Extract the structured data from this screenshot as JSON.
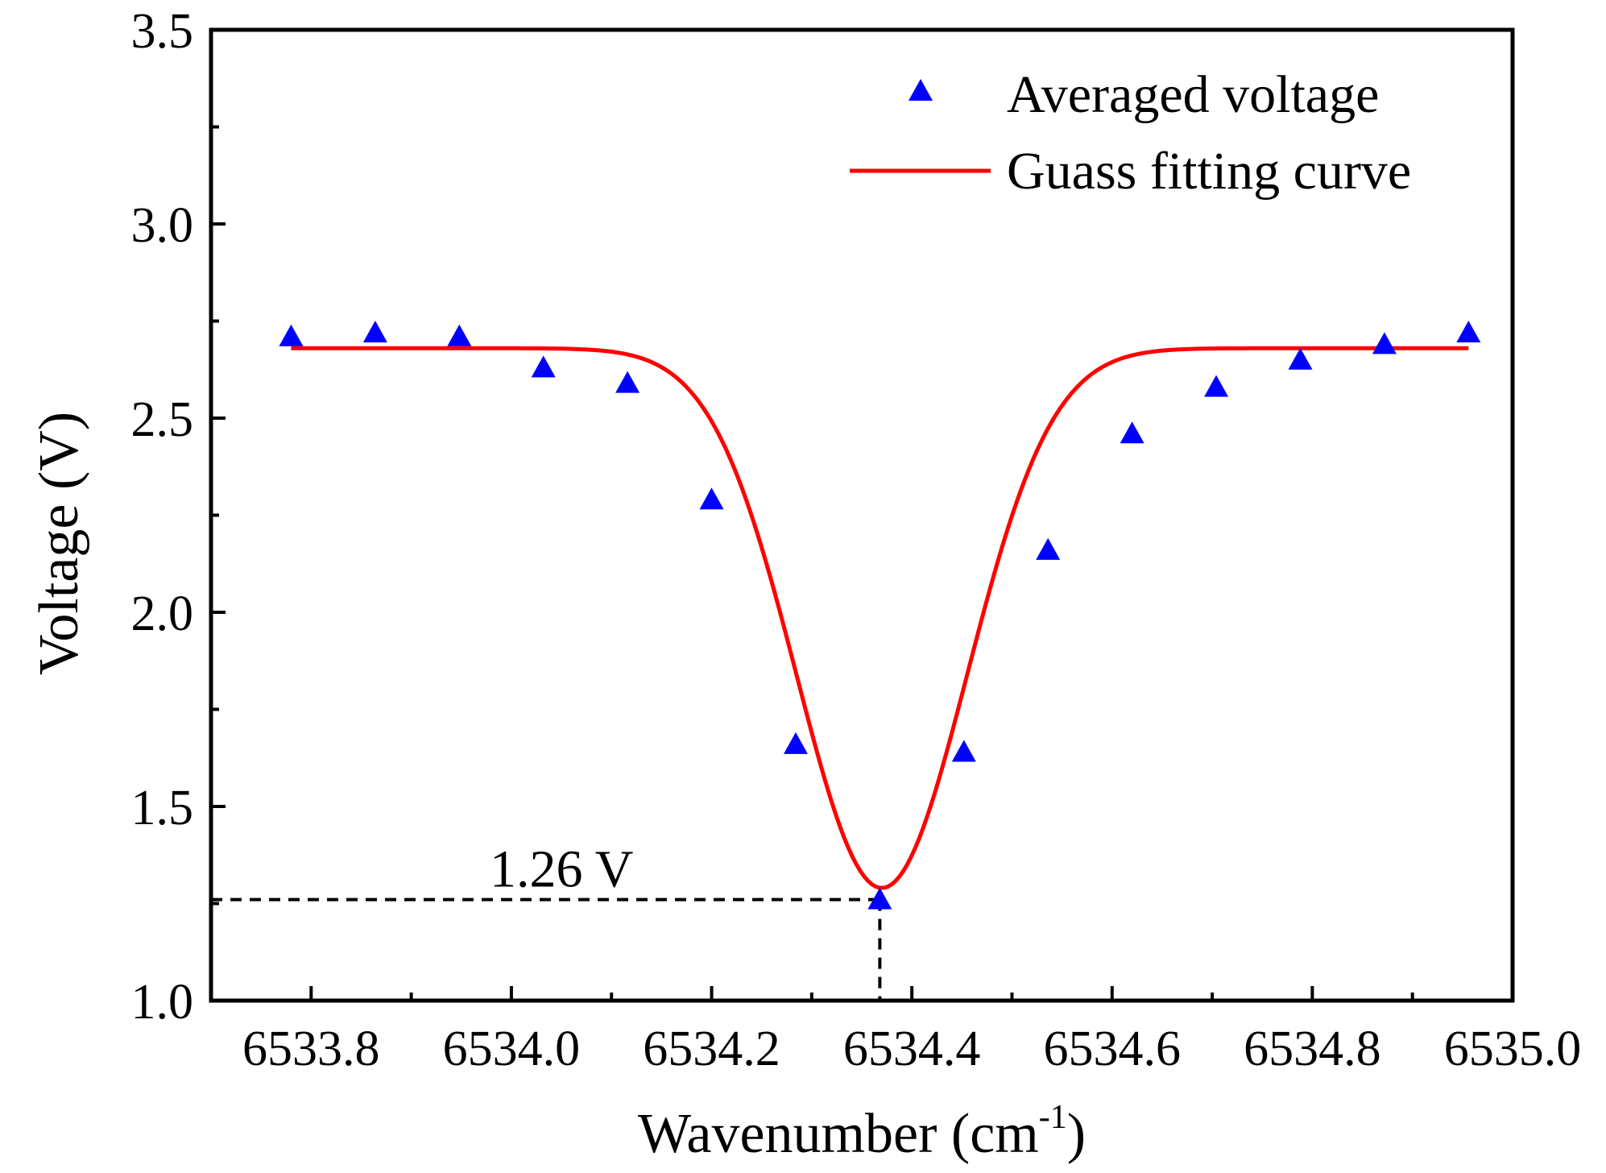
{
  "chart_data": {
    "type": "scatter",
    "title": "",
    "xlabel": "Wavenumber (cm",
    "xlabel_sup": "-1",
    "xlabel_close": ")",
    "ylabel": "Voltage (V)",
    "xlim": [
      6533.7,
      6535.0
    ],
    "ylim": [
      1.0,
      3.5
    ],
    "x_ticks": [
      6533.8,
      6534.0,
      6534.2,
      6534.4,
      6534.6,
      6534.8,
      6535.0
    ],
    "x_tick_labels": [
      "6533.8",
      "6534.0",
      "6534.2",
      "6534.4",
      "6534.6",
      "6534.8",
      "6535.0"
    ],
    "y_ticks": [
      1.0,
      1.5,
      2.0,
      2.5,
      3.0,
      3.5
    ],
    "y_tick_labels": [
      "1.0",
      "1.5",
      "2.0",
      "2.5",
      "3.0",
      "3.5"
    ],
    "x_minor_ticks": [
      6533.9,
      6534.1,
      6534.3,
      6534.5,
      6534.7,
      6534.9
    ],
    "y_minor_ticks": [
      1.25,
      1.75,
      2.25,
      2.75,
      3.25
    ],
    "grid": false,
    "legend_position": "top-right",
    "series": [
      {
        "name": "Averaged voltage",
        "kind": "scatter",
        "marker": "triangle",
        "color": "#0000ff",
        "x": [
          6533.78,
          6533.864,
          6533.948,
          6534.032,
          6534.116,
          6534.2,
          6534.284,
          6534.368,
          6534.452,
          6534.536,
          6534.62,
          6534.704,
          6534.788,
          6534.872,
          6534.956
        ],
        "y": [
          2.71,
          2.72,
          2.71,
          2.63,
          2.59,
          2.29,
          1.66,
          1.26,
          1.64,
          2.16,
          2.46,
          2.58,
          2.65,
          2.69,
          2.72
        ]
      },
      {
        "name": "Guass fitting curve",
        "kind": "line",
        "color": "#ff0000",
        "model": "gaussian",
        "baseline": 2.68,
        "depth": 1.39,
        "center": 6534.37,
        "sigma": 0.085,
        "x_range": [
          6533.78,
          6534.956
        ]
      }
    ],
    "annotations": [
      {
        "text": "1.26 V",
        "kind": "dashed-guide",
        "point": [
          6534.368,
          1.26
        ]
      }
    ]
  }
}
